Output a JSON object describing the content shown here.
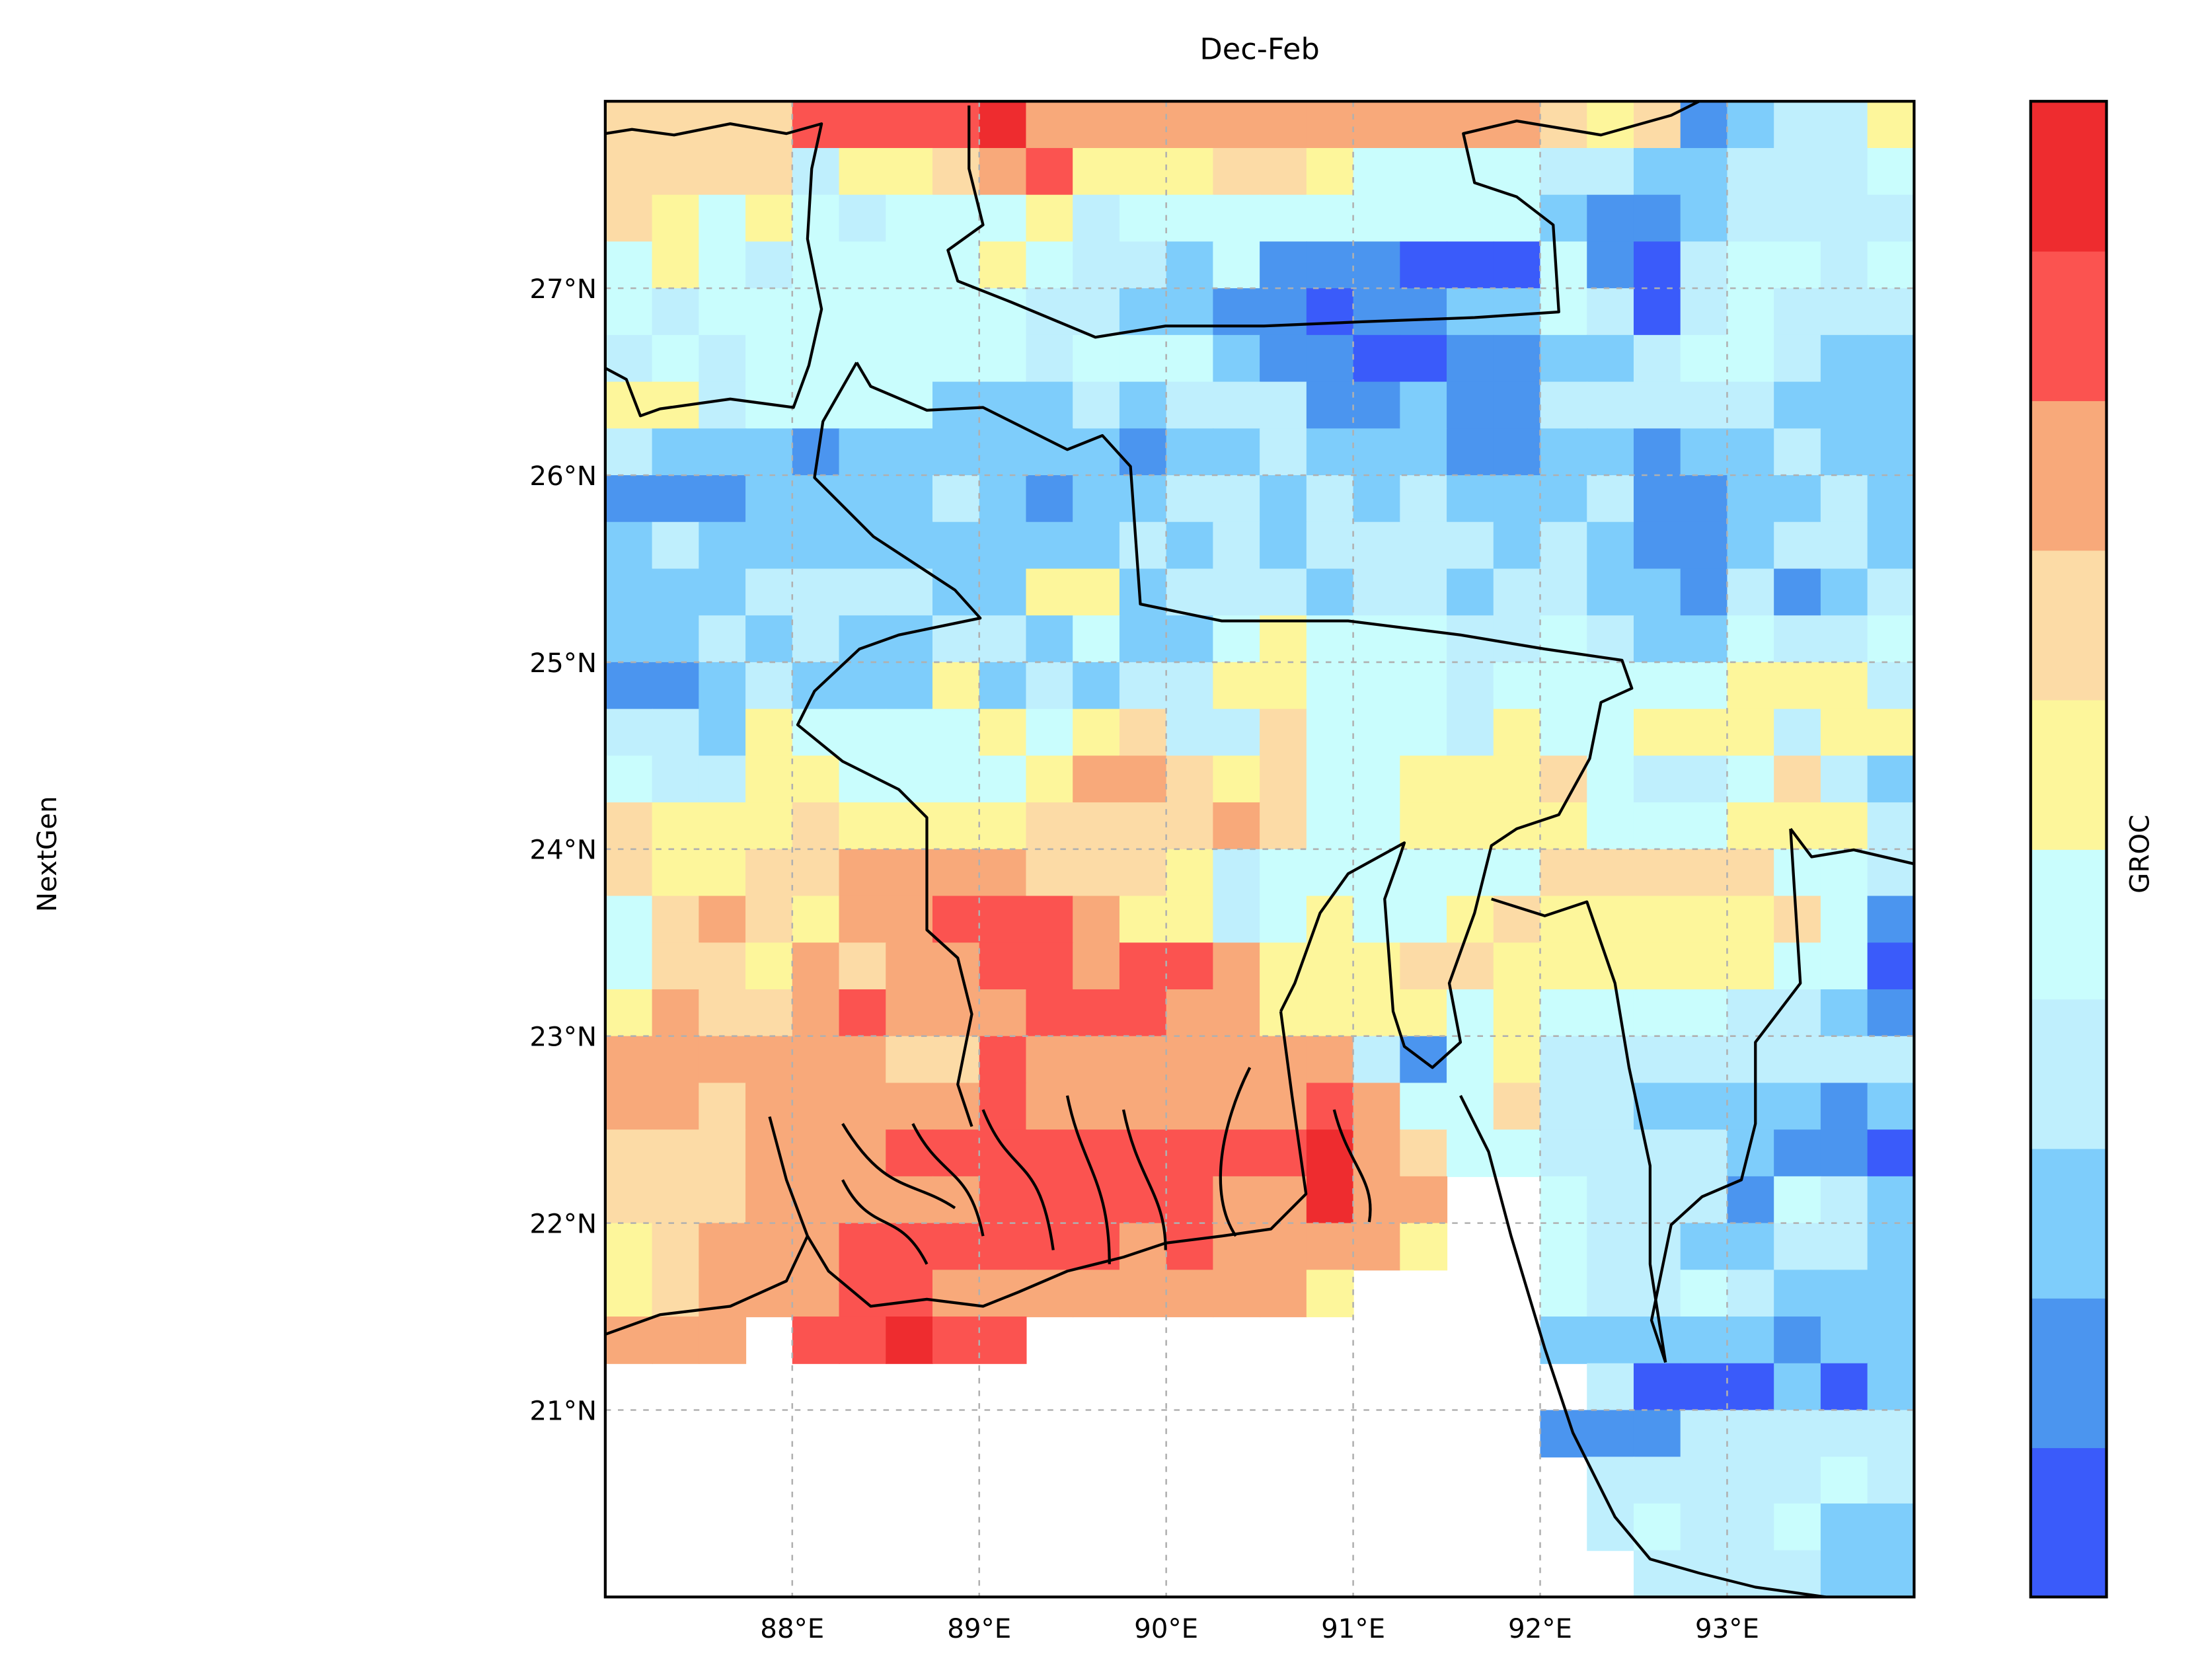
{
  "chart_data": {
    "type": "grid-map",
    "title": "Dec-Feb",
    "ylabel": "NextGen",
    "colorbar": {
      "label": "GROC",
      "colors": [
        "#3a5bfa",
        "#4b95ef",
        "#7ecdfb",
        "#bfeffd",
        "#c9fdfd",
        "#fdf69b",
        "#fcdba6",
        "#f8a97a",
        "#fb5350",
        "#ee2c2f"
      ]
    },
    "xlim": [
      87,
      94
    ],
    "ylim": [
      20,
      28
    ],
    "xticks": [
      {
        "value": 88,
        "label": "88°E"
      },
      {
        "value": 89,
        "label": "89°E"
      },
      {
        "value": 90,
        "label": "90°E"
      },
      {
        "value": 91,
        "label": "91°E"
      },
      {
        "value": 92,
        "label": "92°E"
      },
      {
        "value": 93,
        "label": "93°E"
      }
    ],
    "yticks": [
      {
        "value": 21,
        "label": "21°N"
      },
      {
        "value": 22,
        "label": "22°N"
      },
      {
        "value": 23,
        "label": "23°N"
      },
      {
        "value": 24,
        "label": "24°N"
      },
      {
        "value": 25,
        "label": "25°N"
      },
      {
        "value": 26,
        "label": "26°N"
      },
      {
        "value": 27,
        "label": "27°N"
      }
    ],
    "grid": true,
    "values": [
      [
        6,
        6,
        6,
        6,
        8,
        8,
        8,
        8,
        9,
        7,
        7,
        7,
        7,
        7,
        7,
        7,
        7,
        7,
        7,
        7,
        6,
        5,
        6,
        1,
        2,
        3,
        3,
        5
      ],
      [
        6,
        6,
        6,
        6,
        3,
        5,
        5,
        6,
        7,
        8,
        5,
        5,
        5,
        6,
        6,
        5,
        4,
        4,
        4,
        4,
        3,
        3,
        2,
        2,
        3,
        3,
        3,
        4
      ],
      [
        6,
        5,
        4,
        5,
        4,
        3,
        4,
        4,
        4,
        5,
        3,
        4,
        4,
        4,
        4,
        4,
        4,
        4,
        4,
        4,
        2,
        1,
        1,
        2,
        3,
        3,
        3,
        3
      ],
      [
        4,
        5,
        4,
        3,
        4,
        4,
        4,
        4,
        5,
        4,
        3,
        3,
        2,
        4,
        1,
        1,
        1,
        0,
        0,
        0,
        4,
        1,
        0,
        3,
        4,
        4,
        3,
        4
      ],
      [
        4,
        3,
        4,
        4,
        4,
        4,
        4,
        4,
        4,
        3,
        3,
        2,
        2,
        1,
        1,
        0,
        1,
        1,
        2,
        2,
        4,
        3,
        0,
        3,
        4,
        3,
        3,
        3
      ],
      [
        3,
        4,
        3,
        4,
        4,
        4,
        4,
        4,
        4,
        3,
        4,
        4,
        4,
        2,
        1,
        1,
        0,
        0,
        1,
        1,
        2,
        2,
        3,
        4,
        4,
        3,
        2,
        2
      ],
      [
        5,
        5,
        3,
        4,
        4,
        4,
        4,
        2,
        2,
        2,
        3,
        2,
        3,
        3,
        3,
        1,
        1,
        2,
        1,
        1,
        3,
        3,
        3,
        3,
        3,
        2,
        2,
        2
      ],
      [
        3,
        2,
        2,
        2,
        1,
        2,
        2,
        2,
        2,
        2,
        2,
        1,
        2,
        2,
        3,
        2,
        2,
        2,
        1,
        1,
        2,
        2,
        1,
        2,
        2,
        3,
        2,
        2
      ],
      [
        1,
        1,
        1,
        2,
        2,
        2,
        2,
        3,
        2,
        1,
        2,
        2,
        3,
        3,
        2,
        3,
        2,
        3,
        2,
        2,
        2,
        3,
        1,
        1,
        2,
        2,
        3,
        2
      ],
      [
        2,
        3,
        2,
        2,
        2,
        2,
        2,
        2,
        2,
        2,
        2,
        3,
        2,
        3,
        2,
        3,
        3,
        3,
        3,
        2,
        3,
        2,
        1,
        1,
        2,
        3,
        3,
        2
      ],
      [
        2,
        2,
        2,
        3,
        3,
        3,
        3,
        2,
        2,
        5,
        5,
        2,
        3,
        3,
        3,
        2,
        3,
        3,
        2,
        3,
        3,
        2,
        2,
        1,
        3,
        1,
        2,
        3
      ],
      [
        2,
        2,
        3,
        2,
        3,
        2,
        2,
        3,
        3,
        2,
        4,
        2,
        2,
        4,
        5,
        4,
        4,
        4,
        3,
        3,
        4,
        3,
        2,
        2,
        4,
        3,
        3,
        4
      ],
      [
        1,
        1,
        2,
        3,
        2,
        2,
        2,
        5,
        2,
        3,
        2,
        3,
        3,
        5,
        5,
        4,
        4,
        4,
        3,
        4,
        4,
        4,
        4,
        4,
        5,
        5,
        5,
        3
      ],
      [
        3,
        3,
        2,
        5,
        4,
        4,
        4,
        4,
        5,
        4,
        5,
        6,
        3,
        3,
        6,
        4,
        4,
        4,
        3,
        5,
        4,
        4,
        5,
        5,
        5,
        3,
        5,
        5
      ],
      [
        4,
        3,
        3,
        5,
        5,
        4,
        4,
        4,
        4,
        5,
        7,
        7,
        6,
        5,
        6,
        4,
        4,
        5,
        5,
        5,
        6,
        4,
        3,
        3,
        4,
        6,
        3,
        2
      ],
      [
        6,
        5,
        5,
        5,
        6,
        5,
        5,
        5,
        5,
        6,
        6,
        6,
        6,
        7,
        6,
        4,
        4,
        5,
        5,
        5,
        5,
        4,
        4,
        4,
        5,
        5,
        5,
        3
      ],
      [
        6,
        5,
        5,
        6,
        6,
        7,
        7,
        7,
        7,
        6,
        6,
        6,
        5,
        3,
        4,
        4,
        4,
        4,
        4,
        4,
        6,
        6,
        6,
        6,
        6,
        4,
        4,
        3
      ],
      [
        4,
        6,
        7,
        6,
        5,
        7,
        7,
        8,
        8,
        8,
        7,
        5,
        5,
        3,
        4,
        5,
        4,
        4,
        5,
        6,
        5,
        5,
        5,
        5,
        5,
        6,
        4,
        1
      ],
      [
        4,
        6,
        6,
        5,
        7,
        6,
        7,
        7,
        8,
        8,
        7,
        8,
        8,
        7,
        5,
        5,
        5,
        6,
        6,
        5,
        5,
        5,
        5,
        5,
        5,
        4,
        4,
        0
      ],
      [
        5,
        7,
        6,
        6,
        7,
        8,
        7,
        7,
        7,
        8,
        8,
        8,
        7,
        7,
        5,
        5,
        5,
        5,
        4,
        5,
        4,
        4,
        4,
        4,
        3,
        3,
        2,
        1
      ],
      [
        7,
        7,
        7,
        7,
        7,
        7,
        6,
        6,
        8,
        7,
        7,
        7,
        7,
        7,
        7,
        7,
        3,
        1,
        4,
        5,
        3,
        3,
        3,
        3,
        3,
        3,
        3,
        3
      ],
      [
        7,
        7,
        6,
        7,
        7,
        7,
        7,
        7,
        8,
        7,
        7,
        7,
        7,
        7,
        7,
        8,
        7,
        4,
        4,
        6,
        3,
        3,
        2,
        2,
        2,
        2,
        1,
        2
      ],
      [
        6,
        6,
        6,
        7,
        7,
        7,
        8,
        8,
        8,
        8,
        8,
        8,
        8,
        8,
        8,
        9,
        7,
        6,
        4,
        4,
        3,
        3,
        3,
        3,
        2,
        1,
        1,
        0
      ],
      [
        6,
        6,
        6,
        7,
        7,
        7,
        7,
        7,
        8,
        8,
        8,
        8,
        8,
        7,
        7,
        9,
        7,
        7,
        null,
        null,
        4,
        3,
        3,
        3,
        1,
        4,
        3,
        2
      ],
      [
        5,
        6,
        7,
        7,
        7,
        8,
        8,
        8,
        8,
        8,
        8,
        7,
        8,
        7,
        7,
        7,
        7,
        5,
        null,
        null,
        4,
        3,
        3,
        2,
        2,
        3,
        3,
        2
      ],
      [
        5,
        6,
        7,
        7,
        7,
        8,
        8,
        7,
        7,
        7,
        7,
        7,
        7,
        7,
        7,
        5,
        null,
        null,
        null,
        null,
        4,
        3,
        3,
        4,
        3,
        2,
        2,
        2
      ],
      [
        7,
        7,
        7,
        null,
        8,
        8,
        9,
        8,
        8,
        null,
        null,
        null,
        null,
        null,
        null,
        null,
        null,
        null,
        null,
        null,
        2,
        2,
        2,
        2,
        2,
        1,
        2,
        2
      ],
      [
        null,
        null,
        null,
        null,
        null,
        null,
        null,
        null,
        null,
        null,
        null,
        null,
        null,
        null,
        null,
        null,
        null,
        null,
        null,
        null,
        null,
        3,
        0,
        0,
        0,
        2,
        0,
        2
      ],
      [
        null,
        null,
        null,
        null,
        null,
        null,
        null,
        null,
        null,
        null,
        null,
        null,
        null,
        null,
        null,
        null,
        null,
        null,
        null,
        null,
        1,
        1,
        1,
        3,
        3,
        3,
        3,
        3
      ],
      [
        null,
        null,
        null,
        null,
        null,
        null,
        null,
        null,
        null,
        null,
        null,
        null,
        null,
        null,
        null,
        null,
        null,
        null,
        null,
        null,
        null,
        3,
        3,
        3,
        3,
        3,
        4,
        3
      ],
      [
        null,
        null,
        null,
        null,
        null,
        null,
        null,
        null,
        null,
        null,
        null,
        null,
        null,
        null,
        null,
        null,
        null,
        null,
        null,
        null,
        null,
        3,
        4,
        3,
        3,
        4,
        2,
        2
      ],
      [
        null,
        null,
        null,
        null,
        null,
        null,
        null,
        null,
        null,
        null,
        null,
        null,
        null,
        null,
        null,
        null,
        null,
        null,
        null,
        null,
        null,
        null,
        3,
        3,
        3,
        3,
        2,
        2
      ]
    ]
  }
}
